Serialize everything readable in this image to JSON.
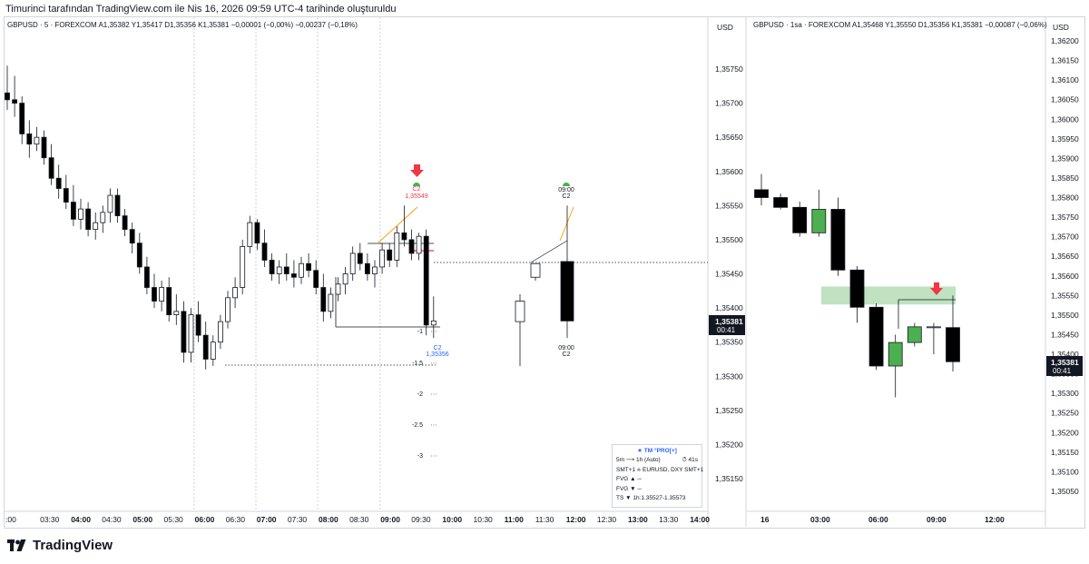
{
  "header": {
    "title": "Timurinci tarafından TradingView.com ile Nis 16, 2026 09:59 UTC-4 tarihinde oluşturuldu"
  },
  "left_chart": {
    "legend": "GBPUSD · 5 · FOREXCOM  A1,35382  Y1,35417  D1,35356  K1,35381  −0,00001 (−0,00%)  −0,00237 (−0,18%)",
    "currency": "USD",
    "price_ticks": [
      "1,35750",
      "1,35700",
      "1,35650",
      "1,35600",
      "1,35550",
      "1,35500",
      "1,35450",
      "1,35400",
      "1,35350",
      "1,35300",
      "1,35250",
      "1,35200",
      "1,35150"
    ],
    "time_ticks": [
      ":00",
      "03:30",
      "04:00",
      "04:30",
      "05:00",
      "05:30",
      "06:00",
      "06:30",
      "07:00",
      "07:30",
      "08:00",
      "08:30",
      "09:00",
      "09:30",
      "10:00",
      "10:30",
      "11:00",
      "11:30",
      "12:00",
      "12:30",
      "13:00",
      "13:30",
      "14:00"
    ],
    "last_price": "1,35381",
    "countdown": "00:41",
    "annotations": {
      "top_label": "C2",
      "top_price": "1,35549",
      "bottom_label": "C2",
      "bottom_price": "1,35356",
      "proj_top_time": "09:00",
      "proj_top_label": "C2",
      "proj_bottom_time": "09:00",
      "proj_bottom_label": "C2",
      "fib_levels": [
        "-1",
        "-1.5",
        "-2",
        "-2.5",
        "-3"
      ]
    },
    "panel": {
      "title": "★ TM °PRO[+]",
      "rows": [
        {
          "left": "5m ⟶ 1h (Auto)",
          "right": "⏱ 41s"
        },
        {
          "left": "SMT+1 ⟡ EURUSD, DXY  SMT+1",
          "right": ""
        },
        {
          "left": "FVG ▲  ─",
          "right": ""
        },
        {
          "left": "FVG ▼  ─",
          "right": ""
        },
        {
          "left": "TS  ▼ 1h:1.35527-1.35573",
          "right": ""
        }
      ]
    }
  },
  "right_chart": {
    "legend": "GBPUSD · 1sa · FOREXCOM  A1,35468  Y1,35550  D1,35356  K1,35381  −0,00087 (−0,06%)",
    "currency": "USD",
    "price_ticks": [
      "1,36200",
      "1,36150",
      "1,36100",
      "1,36050",
      "1,36000",
      "1,35950",
      "1,35900",
      "1,35850",
      "1,35800",
      "1,35750",
      "1,35700",
      "1,35650",
      "1,35600",
      "1,35550",
      "1,35500",
      "1,35450",
      "1,35400",
      "1,35350",
      "1,35300",
      "1,35250",
      "1,35200",
      "1,35150",
      "1,35100",
      "1,35050"
    ],
    "time_ticks": [
      "16",
      "03:00",
      "06:00",
      "09:00",
      "12:00"
    ],
    "last_price": "1,35381",
    "countdown": "00:41"
  },
  "colors": {
    "up_candle": "#ffffff",
    "down_candle": "#000000",
    "green_candle": "#4caf50",
    "fvg_zone": "#a5d6a7",
    "arrow": "#f23645",
    "fib_line": "#ff9800",
    "label_blue": "#2962ff"
  },
  "chart_data": [
    {
      "type": "candlestick",
      "symbol": "GBPUSD",
      "timeframe": "5",
      "ylim": [
        1.3511,
        1.3579
      ],
      "candles": [
        {
          "o": 1.35715,
          "h": 1.35755,
          "l": 1.3569,
          "c": 1.35705
        },
        {
          "o": 1.35705,
          "h": 1.3574,
          "l": 1.3568,
          "c": 1.357
        },
        {
          "o": 1.357,
          "h": 1.3571,
          "l": 1.3564,
          "c": 1.35655
        },
        {
          "o": 1.35655,
          "h": 1.35675,
          "l": 1.3562,
          "c": 1.3564
        },
        {
          "o": 1.3564,
          "h": 1.35665,
          "l": 1.3563,
          "c": 1.3565
        },
        {
          "o": 1.3565,
          "h": 1.3566,
          "l": 1.3561,
          "c": 1.3562
        },
        {
          "o": 1.3562,
          "h": 1.3564,
          "l": 1.3558,
          "c": 1.3559
        },
        {
          "o": 1.3559,
          "h": 1.3561,
          "l": 1.3556,
          "c": 1.35575
        },
        {
          "o": 1.35575,
          "h": 1.35595,
          "l": 1.35545,
          "c": 1.35555
        },
        {
          "o": 1.35555,
          "h": 1.3558,
          "l": 1.3552,
          "c": 1.3553
        },
        {
          "o": 1.3553,
          "h": 1.3556,
          "l": 1.35515,
          "c": 1.35545
        },
        {
          "o": 1.35545,
          "h": 1.35555,
          "l": 1.35505,
          "c": 1.35515
        },
        {
          "o": 1.35515,
          "h": 1.3554,
          "l": 1.355,
          "c": 1.35525
        },
        {
          "o": 1.35525,
          "h": 1.3555,
          "l": 1.3551,
          "c": 1.3554
        },
        {
          "o": 1.3554,
          "h": 1.35575,
          "l": 1.35525,
          "c": 1.35565
        },
        {
          "o": 1.35565,
          "h": 1.35575,
          "l": 1.35525,
          "c": 1.35535
        },
        {
          "o": 1.35535,
          "h": 1.35545,
          "l": 1.35505,
          "c": 1.35515
        },
        {
          "o": 1.35515,
          "h": 1.35525,
          "l": 1.3548,
          "c": 1.35495
        },
        {
          "o": 1.35495,
          "h": 1.3551,
          "l": 1.3545,
          "c": 1.3546
        },
        {
          "o": 1.3546,
          "h": 1.35475,
          "l": 1.3542,
          "c": 1.3543
        },
        {
          "o": 1.3543,
          "h": 1.3545,
          "l": 1.354,
          "c": 1.3541
        },
        {
          "o": 1.3541,
          "h": 1.3544,
          "l": 1.35395,
          "c": 1.3543
        },
        {
          "o": 1.3543,
          "h": 1.35445,
          "l": 1.3538,
          "c": 1.3539
        },
        {
          "o": 1.3539,
          "h": 1.3542,
          "l": 1.35375,
          "c": 1.35395
        },
        {
          "o": 1.35395,
          "h": 1.3541,
          "l": 1.3532,
          "c": 1.35335
        },
        {
          "o": 1.35335,
          "h": 1.354,
          "l": 1.3532,
          "c": 1.3539
        },
        {
          "o": 1.3539,
          "h": 1.3541,
          "l": 1.3535,
          "c": 1.3536
        },
        {
          "o": 1.3536,
          "h": 1.3538,
          "l": 1.3531,
          "c": 1.35325
        },
        {
          "o": 1.35325,
          "h": 1.3536,
          "l": 1.35315,
          "c": 1.3535
        },
        {
          "o": 1.3535,
          "h": 1.3539,
          "l": 1.3534,
          "c": 1.3538
        },
        {
          "o": 1.3538,
          "h": 1.35425,
          "l": 1.3537,
          "c": 1.35415
        },
        {
          "o": 1.35415,
          "h": 1.35445,
          "l": 1.354,
          "c": 1.3543
        },
        {
          "o": 1.3543,
          "h": 1.355,
          "l": 1.3542,
          "c": 1.3549
        },
        {
          "o": 1.3549,
          "h": 1.35535,
          "l": 1.3548,
          "c": 1.35525
        },
        {
          "o": 1.35525,
          "h": 1.3553,
          "l": 1.35485,
          "c": 1.35495
        },
        {
          "o": 1.35495,
          "h": 1.35515,
          "l": 1.3546,
          "c": 1.3547
        },
        {
          "o": 1.3547,
          "h": 1.3548,
          "l": 1.3544,
          "c": 1.3545
        },
        {
          "o": 1.3545,
          "h": 1.3547,
          "l": 1.35435,
          "c": 1.3546
        },
        {
          "o": 1.3546,
          "h": 1.3548,
          "l": 1.3544,
          "c": 1.3545
        },
        {
          "o": 1.3545,
          "h": 1.3547,
          "l": 1.3543,
          "c": 1.35445
        },
        {
          "o": 1.35445,
          "h": 1.35475,
          "l": 1.35435,
          "c": 1.35465
        },
        {
          "o": 1.35465,
          "h": 1.3548,
          "l": 1.35445,
          "c": 1.35455
        },
        {
          "o": 1.35455,
          "h": 1.3547,
          "l": 1.3542,
          "c": 1.3543
        },
        {
          "o": 1.3543,
          "h": 1.3545,
          "l": 1.3538,
          "c": 1.35395
        },
        {
          "o": 1.35395,
          "h": 1.3543,
          "l": 1.35385,
          "c": 1.3542
        },
        {
          "o": 1.3542,
          "h": 1.35445,
          "l": 1.3541,
          "c": 1.35435
        },
        {
          "o": 1.35435,
          "h": 1.3546,
          "l": 1.3542,
          "c": 1.3545
        },
        {
          "o": 1.3545,
          "h": 1.3549,
          "l": 1.3544,
          "c": 1.3548
        },
        {
          "o": 1.3548,
          "h": 1.35495,
          "l": 1.35455,
          "c": 1.35465
        },
        {
          "o": 1.35465,
          "h": 1.3548,
          "l": 1.3544,
          "c": 1.3545
        },
        {
          "o": 1.3545,
          "h": 1.3547,
          "l": 1.3543,
          "c": 1.3546
        },
        {
          "o": 1.3546,
          "h": 1.35495,
          "l": 1.3545,
          "c": 1.35485
        },
        {
          "o": 1.35485,
          "h": 1.35495,
          "l": 1.3546,
          "c": 1.3547
        },
        {
          "o": 1.3547,
          "h": 1.3552,
          "l": 1.3546,
          "c": 1.3551
        },
        {
          "o": 1.3551,
          "h": 1.3555,
          "l": 1.3549,
          "c": 1.355
        },
        {
          "o": 1.355,
          "h": 1.35515,
          "l": 1.3547,
          "c": 1.3548
        },
        {
          "o": 1.3548,
          "h": 1.3551,
          "l": 1.3547,
          "c": 1.35505
        },
        {
          "o": 1.35505,
          "h": 1.35515,
          "l": 1.3536,
          "c": 1.35375
        },
        {
          "o": 1.35375,
          "h": 1.35417,
          "l": 1.35356,
          "c": 1.35381
        }
      ],
      "projection_candles": [
        {
          "o": 1.3538,
          "h": 1.3542,
          "l": 1.35315,
          "c": 1.3541
        },
        {
          "o": 1.35445,
          "h": 1.35455,
          "l": 1.3544,
          "c": 1.35465
        },
        {
          "o": 1.35468,
          "h": 1.3555,
          "l": 1.35356,
          "c": 1.35381
        }
      ]
    },
    {
      "type": "candlestick",
      "symbol": "GBPUSD",
      "timeframe": "1sa",
      "ylim": [
        1.35,
        1.3622
      ],
      "candles": [
        {
          "o": 1.3582,
          "h": 1.3586,
          "l": 1.3578,
          "c": 1.358
        },
        {
          "o": 1.358,
          "h": 1.3581,
          "l": 1.3577,
          "c": 1.35775
        },
        {
          "o": 1.35775,
          "h": 1.3579,
          "l": 1.357,
          "c": 1.3571
        },
        {
          "o": 1.3571,
          "h": 1.3582,
          "l": 1.357,
          "c": 1.3577
        },
        {
          "o": 1.3577,
          "h": 1.358,
          "l": 1.356,
          "c": 1.35615
        },
        {
          "o": 1.35615,
          "h": 1.35625,
          "l": 1.3548,
          "c": 1.3552
        },
        {
          "o": 1.3552,
          "h": 1.3553,
          "l": 1.3536,
          "c": 1.3537
        },
        {
          "o": 1.3537,
          "h": 1.3545,
          "l": 1.3529,
          "c": 1.3543
        },
        {
          "o": 1.3543,
          "h": 1.3548,
          "l": 1.3542,
          "c": 1.3547
        },
        {
          "o": 1.3547,
          "h": 1.3548,
          "l": 1.354,
          "c": 1.3547
        },
        {
          "o": 1.35468,
          "h": 1.3555,
          "l": 1.35356,
          "c": 1.35381
        }
      ],
      "fvg_zone": [
        1.35527,
        1.35573
      ]
    }
  ]
}
